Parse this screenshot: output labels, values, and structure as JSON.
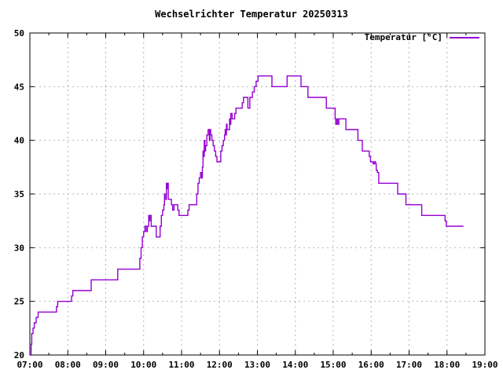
{
  "title": "Wechselrichter Temperatur 20250313",
  "chart_data": {
    "type": "line",
    "subtype": "steps",
    "title": "Wechselrichter Temperatur 20250313",
    "legend": "Temperatur [°C]",
    "legend_position": "inside-top-right",
    "xlabel": "",
    "ylabel": "",
    "x_tick_labels": [
      "07:00",
      "08:00",
      "09:00",
      "10:00",
      "11:00",
      "12:00",
      "13:00",
      "14:00",
      "15:00",
      "16:00",
      "17:00",
      "18:00",
      "19:00"
    ],
    "y_ticks": [
      20,
      25,
      30,
      35,
      40,
      45,
      50
    ],
    "xlim_hours": [
      7,
      19
    ],
    "ylim": [
      20,
      50
    ],
    "grid": true,
    "minor_x_ticks_minutes": 30,
    "line_color": "#9400d3",
    "grid_color": "#b4b4b4",
    "axis_color": "#000000",
    "background_color": "#ffffff",
    "points": [
      [
        "07:00",
        20
      ],
      [
        "07:02",
        21
      ],
      [
        "07:03",
        22
      ],
      [
        "07:05",
        22.5
      ],
      [
        "07:07",
        23
      ],
      [
        "07:10",
        23.5
      ],
      [
        "07:13",
        24
      ],
      [
        "07:40",
        24
      ],
      [
        "07:42",
        24.5
      ],
      [
        "07:44",
        25
      ],
      [
        "08:04",
        25
      ],
      [
        "08:06",
        25.5
      ],
      [
        "08:08",
        26
      ],
      [
        "08:35",
        26
      ],
      [
        "08:37",
        27
      ],
      [
        "09:17",
        27
      ],
      [
        "09:19",
        28
      ],
      [
        "09:52",
        28
      ],
      [
        "09:54",
        29
      ],
      [
        "09:56",
        30
      ],
      [
        "09:58",
        31
      ],
      [
        "10:00",
        31.5
      ],
      [
        "10:02",
        32
      ],
      [
        "10:04",
        31.5
      ],
      [
        "10:06",
        32
      ],
      [
        "10:08",
        33
      ],
      [
        "10:09",
        32.5
      ],
      [
        "10:10",
        33
      ],
      [
        "10:12",
        32
      ],
      [
        "10:18",
        32
      ],
      [
        "10:20",
        31
      ],
      [
        "10:24",
        31
      ],
      [
        "10:26",
        32
      ],
      [
        "10:28",
        33
      ],
      [
        "10:30",
        33.5
      ],
      [
        "10:32",
        34
      ],
      [
        "10:33",
        35
      ],
      [
        "10:34",
        34.5
      ],
      [
        "10:36",
        36
      ],
      [
        "10:37",
        35.5
      ],
      [
        "10:38",
        36
      ],
      [
        "10:39",
        34.5
      ],
      [
        "10:44",
        34
      ],
      [
        "10:46",
        33.5
      ],
      [
        "10:48",
        34
      ],
      [
        "10:52",
        34
      ],
      [
        "10:54",
        33.5
      ],
      [
        "10:56",
        33
      ],
      [
        "11:08",
        33
      ],
      [
        "11:10",
        33.5
      ],
      [
        "11:12",
        34
      ],
      [
        "11:22",
        34
      ],
      [
        "11:24",
        35
      ],
      [
        "11:26",
        36
      ],
      [
        "11:28",
        36.5
      ],
      [
        "11:30",
        37
      ],
      [
        "11:32",
        36.5
      ],
      [
        "11:33",
        37.5
      ],
      [
        "11:34",
        39
      ],
      [
        "11:35",
        38.5
      ],
      [
        "11:36",
        40
      ],
      [
        "11:37",
        39
      ],
      [
        "11:38",
        39.5
      ],
      [
        "11:40",
        40.5
      ],
      [
        "11:42",
        41
      ],
      [
        "11:44",
        40
      ],
      [
        "11:45",
        41
      ],
      [
        "11:46",
        40.5
      ],
      [
        "11:48",
        40
      ],
      [
        "11:50",
        39.5
      ],
      [
        "11:52",
        39
      ],
      [
        "11:54",
        38.5
      ],
      [
        "11:56",
        38
      ],
      [
        "12:00",
        38
      ],
      [
        "12:02",
        39
      ],
      [
        "12:04",
        39.5
      ],
      [
        "12:06",
        40
      ],
      [
        "12:08",
        40.5
      ],
      [
        "12:09",
        41
      ],
      [
        "12:10",
        40.5
      ],
      [
        "12:11",
        41.5
      ],
      [
        "12:12",
        41
      ],
      [
        "12:14",
        41
      ],
      [
        "12:16",
        42
      ],
      [
        "12:17",
        41.5
      ],
      [
        "12:18",
        42.5
      ],
      [
        "12:20",
        42
      ],
      [
        "12:24",
        42.5
      ],
      [
        "12:26",
        43
      ],
      [
        "12:34",
        43
      ],
      [
        "12:36",
        43.5
      ],
      [
        "12:38",
        44
      ],
      [
        "12:44",
        44
      ],
      [
        "12:45",
        43
      ],
      [
        "12:47",
        43
      ],
      [
        "12:48",
        44
      ],
      [
        "12:52",
        44.5
      ],
      [
        "12:55",
        45
      ],
      [
        "12:58",
        45.5
      ],
      [
        "13:01",
        46
      ],
      [
        "13:21",
        46
      ],
      [
        "13:23",
        45
      ],
      [
        "13:45",
        45
      ],
      [
        "13:47",
        46
      ],
      [
        "14:07",
        46
      ],
      [
        "14:09",
        45
      ],
      [
        "14:18",
        45
      ],
      [
        "14:20",
        44
      ],
      [
        "14:47",
        44
      ],
      [
        "14:49",
        43
      ],
      [
        "15:01",
        43
      ],
      [
        "15:03",
        42
      ],
      [
        "15:04",
        41.5
      ],
      [
        "15:06",
        42
      ],
      [
        "15:07",
        41.5
      ],
      [
        "15:09",
        42
      ],
      [
        "15:18",
        42
      ],
      [
        "15:20",
        41
      ],
      [
        "15:37",
        41
      ],
      [
        "15:39",
        40
      ],
      [
        "15:44",
        40
      ],
      [
        "15:46",
        39
      ],
      [
        "15:55",
        39
      ],
      [
        "15:57",
        38.5
      ],
      [
        "15:59",
        38
      ],
      [
        "16:02",
        38
      ],
      [
        "16:03",
        37.8
      ],
      [
        "16:05",
        38
      ],
      [
        "16:07",
        37.8
      ],
      [
        "16:08",
        37.2
      ],
      [
        "16:10",
        37
      ],
      [
        "16:12",
        36
      ],
      [
        "16:40",
        36
      ],
      [
        "16:42",
        35
      ],
      [
        "16:53",
        35
      ],
      [
        "16:55",
        34
      ],
      [
        "17:18",
        34
      ],
      [
        "17:20",
        33
      ],
      [
        "17:56",
        33
      ],
      [
        "17:57",
        32.5
      ],
      [
        "17:59",
        32
      ],
      [
        "18:26",
        32
      ]
    ]
  }
}
